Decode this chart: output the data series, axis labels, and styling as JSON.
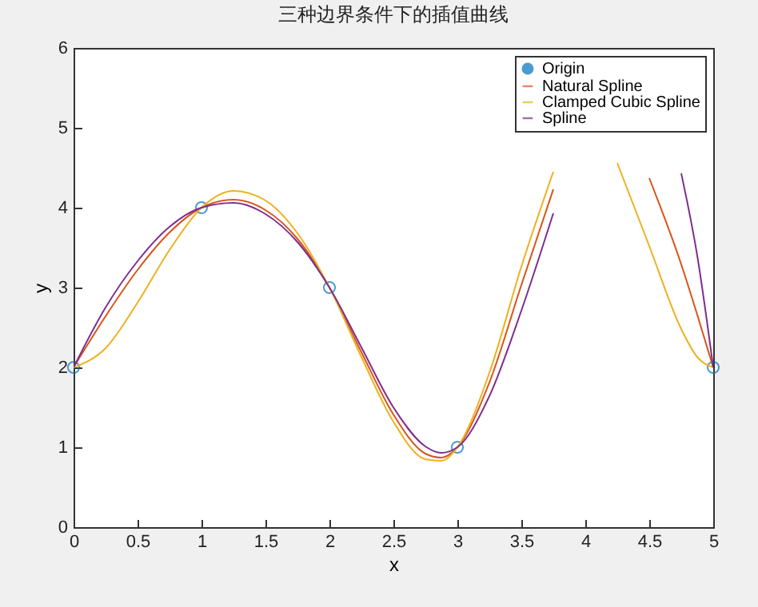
{
  "chart_data": {
    "type": "line",
    "title": "三种边界条件下的插值曲线",
    "xlabel": "x",
    "ylabel": "y",
    "xlim": [
      0,
      5
    ],
    "xticks": [
      0,
      0.5,
      1,
      1.5,
      2,
      2.5,
      3,
      3.5,
      4,
      4.5,
      5
    ],
    "ylim": [
      0,
      6
    ],
    "yticks": [
      0,
      1,
      2,
      3,
      4,
      5,
      6
    ],
    "grid": false,
    "legend": "top right",
    "line_style": "solid",
    "x": [
      0,
      0.25,
      0.5,
      0.75,
      1,
      1.25,
      1.5,
      1.75,
      2,
      2.25,
      2.5,
      2.75,
      2.875,
      3,
      3.25,
      3.5,
      3.75,
      4,
      4.25,
      4.5,
      4.75,
      4.875,
      5
    ],
    "series": [
      {
        "name": "Origin",
        "type": "scatter",
        "marker": "circle",
        "color": "#0072bd",
        "x": [
          0,
          1,
          2,
          3,
          4,
          5
        ],
        "values": [
          2,
          4,
          3,
          1,
          null,
          2
        ]
      },
      {
        "name": "Natural Spline",
        "color": "#d95319",
        "values": [
          2,
          2.64,
          3.22,
          3.69,
          4,
          4.1,
          3.97,
          3.61,
          3,
          2.19,
          1.41,
          0.92,
          0.87,
          1,
          1.81,
          3.03,
          4.23,
          null,
          null,
          4.37,
          3.29,
          2.66,
          2
        ]
      },
      {
        "name": "Clamped Cubic Spline",
        "color": "#edb120",
        "values": [
          2,
          2.24,
          2.81,
          3.47,
          4,
          4.21,
          4.09,
          3.68,
          3,
          2.13,
          1.32,
          0.85,
          0.83,
          1,
          1.93,
          3.26,
          4.45,
          null,
          4.56,
          3.52,
          2.48,
          2.13,
          2
        ]
      },
      {
        "name": "Spline",
        "color": "#7e2f8e",
        "values": [
          2,
          2.75,
          3.33,
          3.76,
          4,
          4.06,
          3.92,
          3.57,
          3,
          2.25,
          1.5,
          1.01,
          0.93,
          1,
          1.64,
          2.71,
          3.93,
          null,
          null,
          null,
          4.43,
          3.4,
          2
        ]
      }
    ]
  }
}
